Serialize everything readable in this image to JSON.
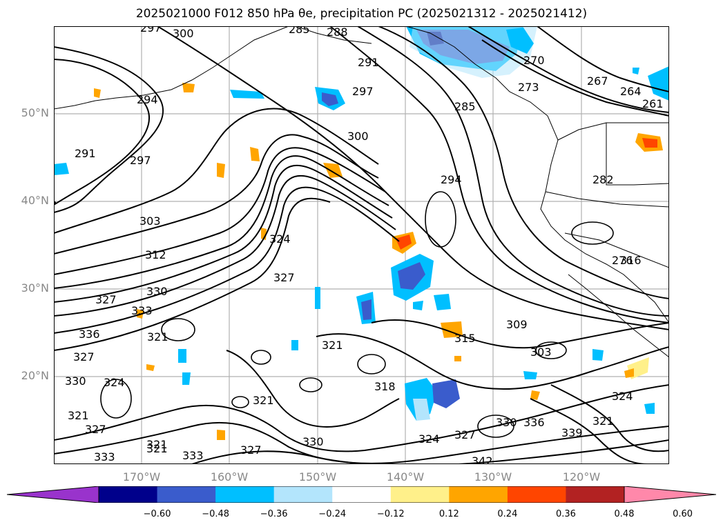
{
  "title": "2025021000 F012 850 hPa θe, precipitation PC (2025021312 - 2025021412)",
  "map": {
    "projection": "plate-carree",
    "lon_range": [
      -180,
      -110
    ],
    "lat_range": [
      10,
      60
    ],
    "gridlines": true,
    "lat_labels": [
      "50°N",
      "40°N",
      "30°N",
      "20°N"
    ],
    "lon_labels": [
      "170°W",
      "160°W",
      "150°W",
      "140°W",
      "130°W",
      "120°W"
    ],
    "contour_variable": "850 hPa θe",
    "contour_labels": [
      "297",
      "300",
      "285",
      "288",
      "291",
      "297",
      "294",
      "270",
      "273",
      "264",
      "267",
      "261",
      "276",
      "285",
      "291",
      "294",
      "297",
      "300",
      "282",
      "303",
      "312",
      "324",
      "327",
      "330",
      "333",
      "336",
      "327",
      "321",
      "327",
      "324",
      "330",
      "321",
      "327",
      "333",
      "321",
      "321",
      "318",
      "321",
      "309",
      "315",
      "303",
      "324",
      "321",
      "330",
      "336",
      "339",
      "327",
      "324",
      "330",
      "342",
      "333",
      "321",
      "316",
      "327"
    ]
  },
  "colorbar": {
    "colors": [
      "#9933cc",
      "#00008b",
      "#3a5ccc",
      "#00bfff",
      "#b3e5fc",
      "#ffffff",
      "#fff08a",
      "#ffa500",
      "#ff4500",
      "#b22222",
      "#ff88aa"
    ],
    "tick_labels": [
      "−0.60",
      "−0.48",
      "−0.36",
      "−0.24",
      "−0.12",
      "0.12",
      "0.24",
      "0.36",
      "0.48",
      "0.60"
    ],
    "extend": "both"
  }
}
